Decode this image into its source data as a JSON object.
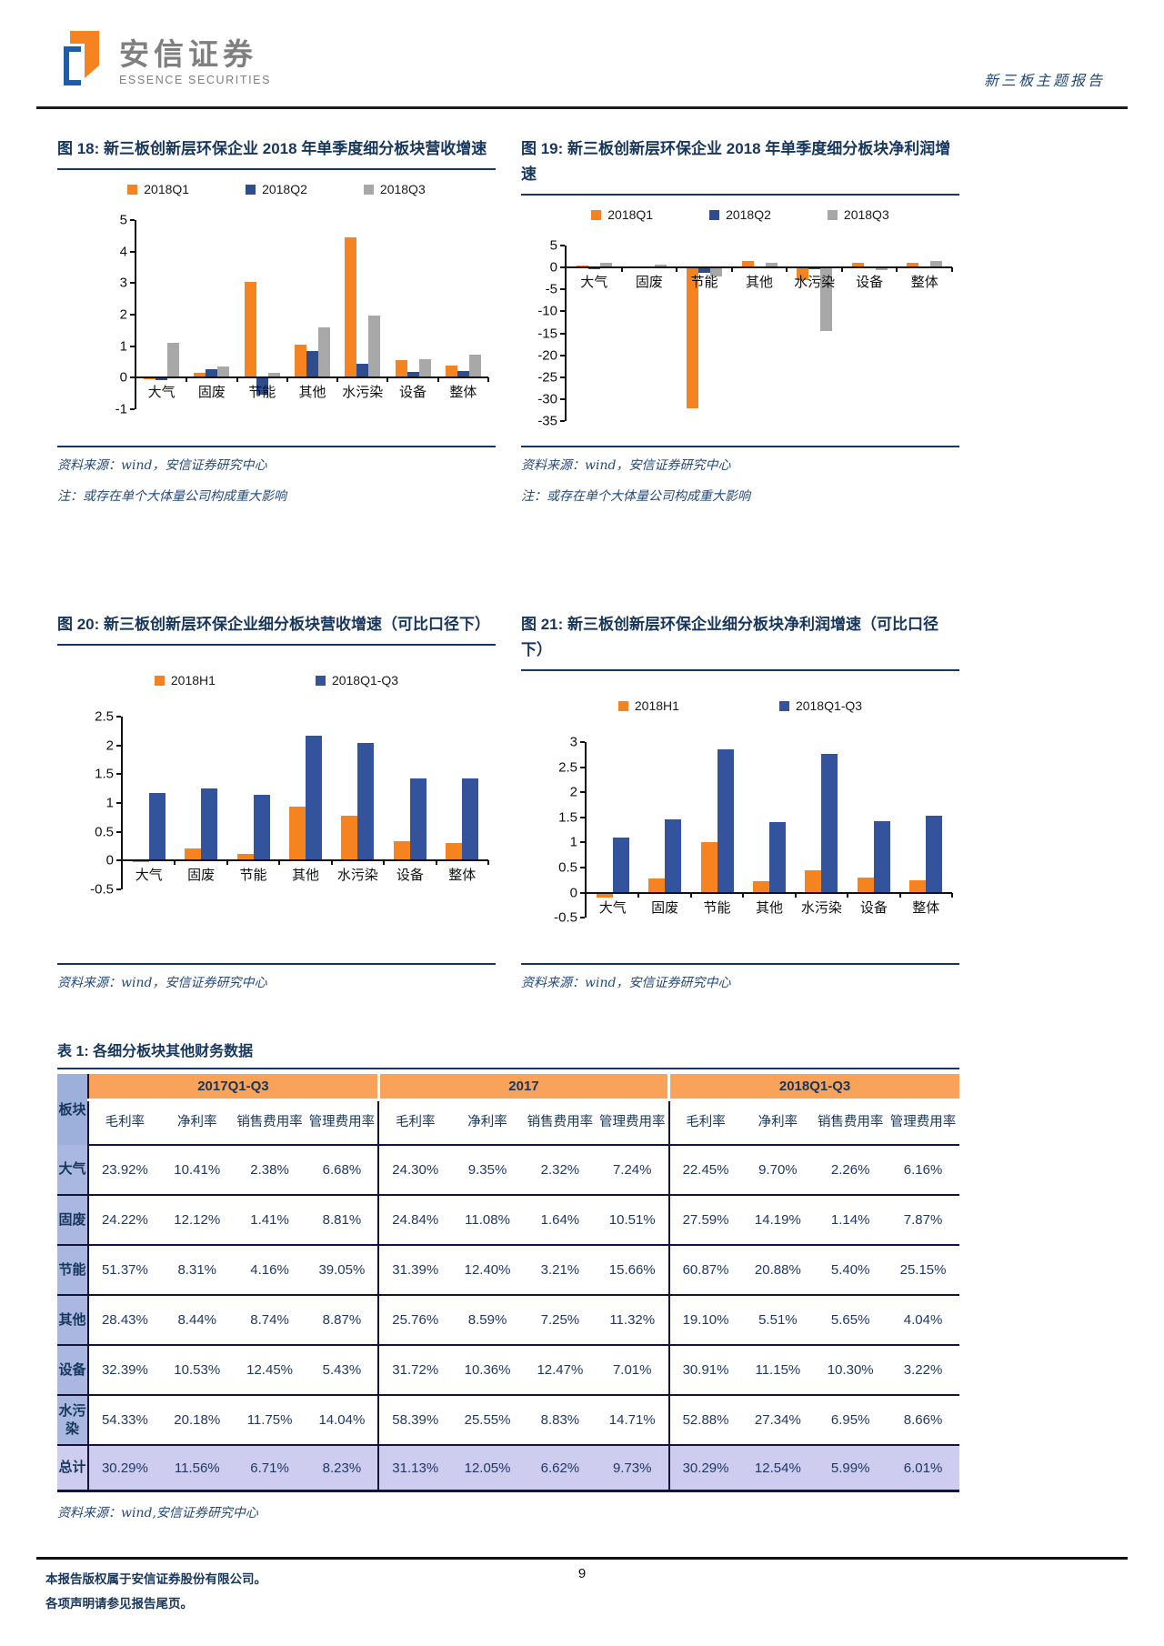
{
  "header": {
    "brand_cn": "安信证券",
    "brand_en": "ESSENCE SECURITIES",
    "report_type": "新三板主题报告"
  },
  "figures": [
    {
      "label": "图 18: ",
      "title": "新三板创新层环保企业 2018 年单季度细分板块营收增速",
      "source": "资料来源：wind，安信证券研究中心",
      "note": "注：或存在单个大体量公司构成重大影响",
      "chart_data": {
        "type": "bar",
        "categories": [
          "大气",
          "固废",
          "节能",
          "其他",
          "水污染",
          "设备",
          "整体"
        ],
        "series": [
          {
            "name": "2018Q1",
            "color": "#F5831F",
            "values": [
              -0.05,
              0.15,
              3.05,
              1.05,
              4.45,
              0.55,
              0.4
            ]
          },
          {
            "name": "2018Q2",
            "color": "#2F4D8C",
            "values": [
              -0.07,
              0.27,
              -0.55,
              0.85,
              0.45,
              0.18,
              0.22
            ]
          },
          {
            "name": "2018Q3",
            "color": "#A8A8A8",
            "values": [
              1.12,
              0.35,
              0.15,
              1.6,
              1.97,
              0.6,
              0.72
            ]
          }
        ],
        "ylim": [
          -1,
          5
        ],
        "yticks": [
          5,
          4,
          3,
          2,
          1,
          0,
          -1
        ],
        "legend_position": "top",
        "grid": false
      }
    },
    {
      "label": "图 19: ",
      "title": "新三板创新层环保企业 2018 年单季度细分板块净利润增速",
      "source": "资料来源：wind，安信证券研究中心",
      "note": "注：或存在单个大体量公司构成重大影响",
      "chart_data": {
        "type": "bar",
        "categories": [
          "大气",
          "固废",
          "节能",
          "其他",
          "水污染",
          "设备",
          "整体"
        ],
        "series": [
          {
            "name": "2018Q1",
            "color": "#F5831F",
            "values": [
              0.5,
              0.1,
              -32.0,
              1.4,
              -2.8,
              1.0,
              1.0
            ]
          },
          {
            "name": "2018Q2",
            "color": "#2F4D8C",
            "values": [
              -0.4,
              -0.1,
              -1.2,
              -0.15,
              -0.3,
              -0.15,
              0.2
            ]
          },
          {
            "name": "2018Q3",
            "color": "#A8A8A8",
            "values": [
              1.0,
              0.7,
              -2.0,
              1.0,
              -14.5,
              -0.6,
              1.5
            ]
          }
        ],
        "ylim": [
          -35,
          5
        ],
        "yticks": [
          5,
          0,
          -5,
          -10,
          -15,
          -20,
          -25,
          -30,
          -35
        ],
        "legend_position": "top",
        "grid": false
      }
    },
    {
      "label": "图 20: ",
      "title": "新三板创新层环保企业细分板块营收增速（可比口径下）",
      "source": "资料来源：wind，安信证券研究中心",
      "note": "",
      "chart_data": {
        "type": "bar",
        "categories": [
          "大气",
          "固废",
          "节能",
          "其他",
          "水污染",
          "设备",
          "整体"
        ],
        "series": [
          {
            "name": "2018H1",
            "color": "#F5831F",
            "values": [
              -0.03,
              0.21,
              0.11,
              0.94,
              0.78,
              0.34,
              0.31
            ]
          },
          {
            "name": "2018Q1-Q3",
            "color": "#33539C",
            "values": [
              1.18,
              1.26,
              1.14,
              2.17,
              2.05,
              1.43,
              1.43
            ]
          }
        ],
        "ylim": [
          -0.5,
          2.5
        ],
        "yticks": [
          2.5,
          2,
          1.5,
          1,
          0.5,
          0,
          -0.5
        ],
        "legend_position": "top",
        "grid": false
      }
    },
    {
      "label": "图 21: ",
      "title": "新三板创新层环保企业细分板块净利润增速（可比口径下）",
      "source": "资料来源：wind，安信证券研究中心",
      "note": "",
      "chart_data": {
        "type": "bar",
        "categories": [
          "大气",
          "固废",
          "节能",
          "其他",
          "水污染",
          "设备",
          "整体"
        ],
        "series": [
          {
            "name": "2018H1",
            "color": "#F5831F",
            "values": [
              -0.1,
              0.28,
              1.01,
              0.22,
              0.45,
              0.3,
              0.24
            ]
          },
          {
            "name": "2018Q1-Q3",
            "color": "#33539C",
            "values": [
              1.1,
              1.46,
              2.85,
              1.4,
              2.77,
              1.42,
              1.53
            ]
          }
        ],
        "ylim": [
          -0.5,
          3
        ],
        "yticks": [
          3,
          2.5,
          2,
          1.5,
          1,
          0.5,
          0,
          -0.5
        ],
        "legend_position": "top",
        "grid": false
      }
    }
  ],
  "table": {
    "label": "表 1: ",
    "title": "各细分板块其他财务数据",
    "corner_header": "板块",
    "groups": [
      "2017Q1-Q3",
      "2017",
      "2018Q1-Q3"
    ],
    "sub_columns": [
      "毛利率",
      "净利率",
      "销售费用率",
      "管理费用率"
    ],
    "rows": [
      {
        "label": "大气",
        "values": [
          "23.92%",
          "10.41%",
          "2.38%",
          "6.68%",
          "24.30%",
          "9.35%",
          "2.32%",
          "7.24%",
          "22.45%",
          "9.70%",
          "2.26%",
          "6.16%"
        ]
      },
      {
        "label": "固废",
        "values": [
          "24.22%",
          "12.12%",
          "1.41%",
          "8.81%",
          "24.84%",
          "11.08%",
          "1.64%",
          "10.51%",
          "27.59%",
          "14.19%",
          "1.14%",
          "7.87%"
        ]
      },
      {
        "label": "节能",
        "values": [
          "51.37%",
          "8.31%",
          "4.16%",
          "39.05%",
          "31.39%",
          "12.40%",
          "3.21%",
          "15.66%",
          "60.87%",
          "20.88%",
          "5.40%",
          "25.15%"
        ]
      },
      {
        "label": "其他",
        "values": [
          "28.43%",
          "8.44%",
          "8.74%",
          "8.87%",
          "25.76%",
          "8.59%",
          "7.25%",
          "11.32%",
          "19.10%",
          "5.51%",
          "5.65%",
          "4.04%"
        ]
      },
      {
        "label": "设备",
        "values": [
          "32.39%",
          "10.53%",
          "12.45%",
          "5.43%",
          "31.72%",
          "10.36%",
          "12.47%",
          "7.01%",
          "30.91%",
          "11.15%",
          "10.30%",
          "3.22%"
        ]
      },
      {
        "label": "水污染",
        "values": [
          "54.33%",
          "20.18%",
          "11.75%",
          "14.04%",
          "58.39%",
          "25.55%",
          "8.83%",
          "14.71%",
          "52.88%",
          "27.34%",
          "6.95%",
          "8.66%"
        ]
      },
      {
        "label": "总计",
        "values": [
          "30.29%",
          "11.56%",
          "6.71%",
          "8.23%",
          "31.13%",
          "12.05%",
          "6.62%",
          "9.73%",
          "30.29%",
          "12.54%",
          "5.99%",
          "6.01%"
        ],
        "is_total": true
      }
    ],
    "source": "资料来源：wind,安信证券研究中心"
  },
  "footer": {
    "copyright_line1": "本报告版权属于安信证券股份有限公司。",
    "copyright_line2": "各项声明请参见报告尾页。",
    "page_number": "9"
  },
  "colors": {
    "accent_navy": "#17365D",
    "bar_orange": "#F5831F",
    "bar_navy": "#2F4D8C",
    "bar_gray": "#A8A8A8",
    "bar_blue": "#33539C",
    "table_header_orange": "#F8A359",
    "table_rowheader_blue": "#A9B7E1",
    "table_total_lavender": "#CECDEF"
  }
}
